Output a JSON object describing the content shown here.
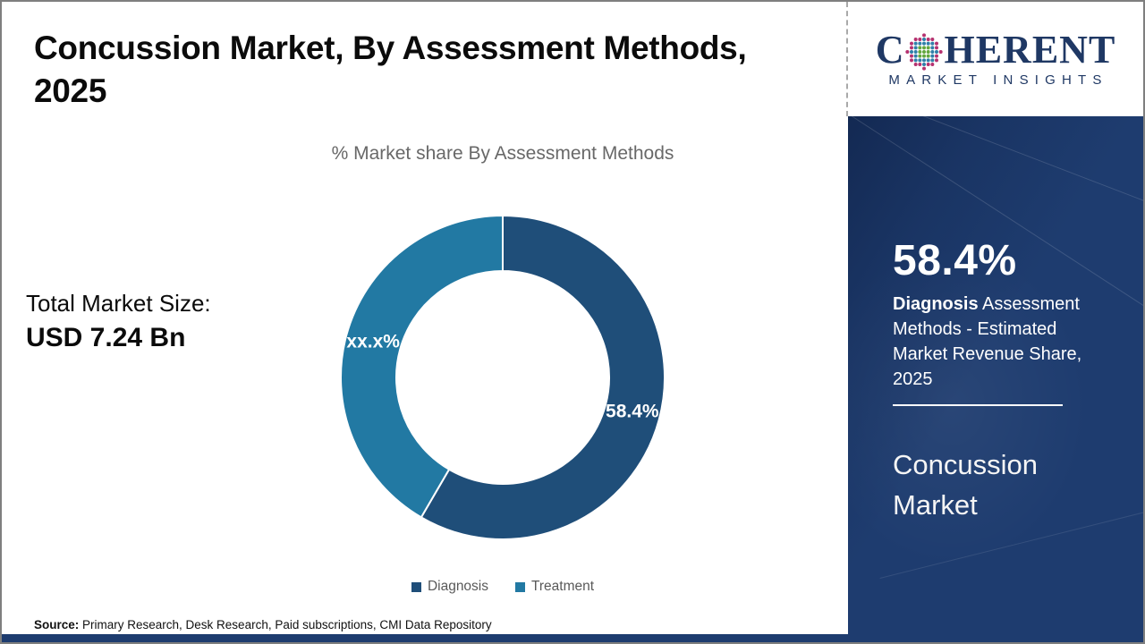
{
  "header": {
    "title": "Concussion Market, By Assessment Methods,\n2025"
  },
  "logo": {
    "prefix": "C",
    "suffix": "HERENT",
    "subtitle": "MARKET INSIGHTS",
    "navy": "#1f3864",
    "globe_colors": {
      "inner": "#63a73e",
      "mid": "#2f7fa9",
      "outer": "#b5316f"
    }
  },
  "main": {
    "total_label": "Total Market Size:",
    "total_value": "USD 7.24 Bn"
  },
  "chart_data": {
    "type": "pie",
    "donut": true,
    "title": "% Market share By Assessment Methods",
    "categories": [
      "Diagnosis",
      "Treatment"
    ],
    "values": [
      58.4,
      41.6
    ],
    "slice_labels": [
      "58.4%",
      "xx.x%"
    ],
    "colors": [
      "#1f4e79",
      "#2279a3"
    ],
    "start_angle": 0,
    "direction": "clockwise",
    "inner_radius_ratio": 0.66,
    "legend_position": "bottom",
    "legend_text_color": "#595959"
  },
  "sidebar": {
    "bg": "#1e3c6f",
    "stat_value": "58.4%",
    "stat_desc_bold": "Diagnosis",
    "stat_desc_rest": " Assessment Methods - Estimated Market Revenue Share, 2025",
    "product": "Concussion Market"
  },
  "footer": {
    "source_label": "Source:",
    "source_text": " Primary Research, Desk Research, Paid subscriptions, CMI Data Repository"
  }
}
